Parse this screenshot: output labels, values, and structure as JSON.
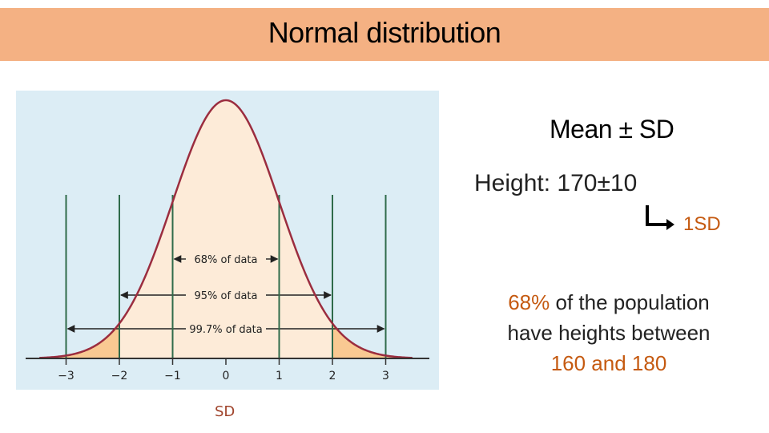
{
  "slide": {
    "title": "Normal distribution",
    "sd_caption": "SD",
    "mean_sd": "Mean ± SD",
    "height_label": "Height:  170±10",
    "one_sd": "1SD",
    "explanation": {
      "pct": "68%",
      "text1": " of the population",
      "text2": "have heights between",
      "range": "160 and 180"
    }
  },
  "icons": {
    "arrow": "corner-down-right-arrow-icon"
  },
  "colors": {
    "title_bar": "#f4b183",
    "figure_bg": "#dcedf5",
    "curve": "#9b2d3f",
    "fill_inner": "#fdebd8",
    "fill_tail": "#f9c992",
    "sd_lines": "#2f6b4a",
    "accent": "#c55a11"
  },
  "chart_data": {
    "type": "area",
    "distribution": "normal",
    "mean": 0,
    "sd": 1,
    "xlim": [
      -3.5,
      3.5
    ],
    "ticks": [
      -3,
      -2,
      -1,
      0,
      1,
      2,
      3
    ],
    "tick_labels": [
      "−3",
      "−2",
      "−1",
      "0",
      "1",
      "2",
      "3"
    ],
    "sd_lines": [
      -3,
      -2,
      -1,
      1,
      2,
      3
    ],
    "annotations": [
      {
        "label": "68% of data",
        "from": -1,
        "to": 1
      },
      {
        "label": "95% of data",
        "from": -2,
        "to": 2
      },
      {
        "label": "99.7% of data",
        "from": -3,
        "to": 3
      }
    ]
  }
}
